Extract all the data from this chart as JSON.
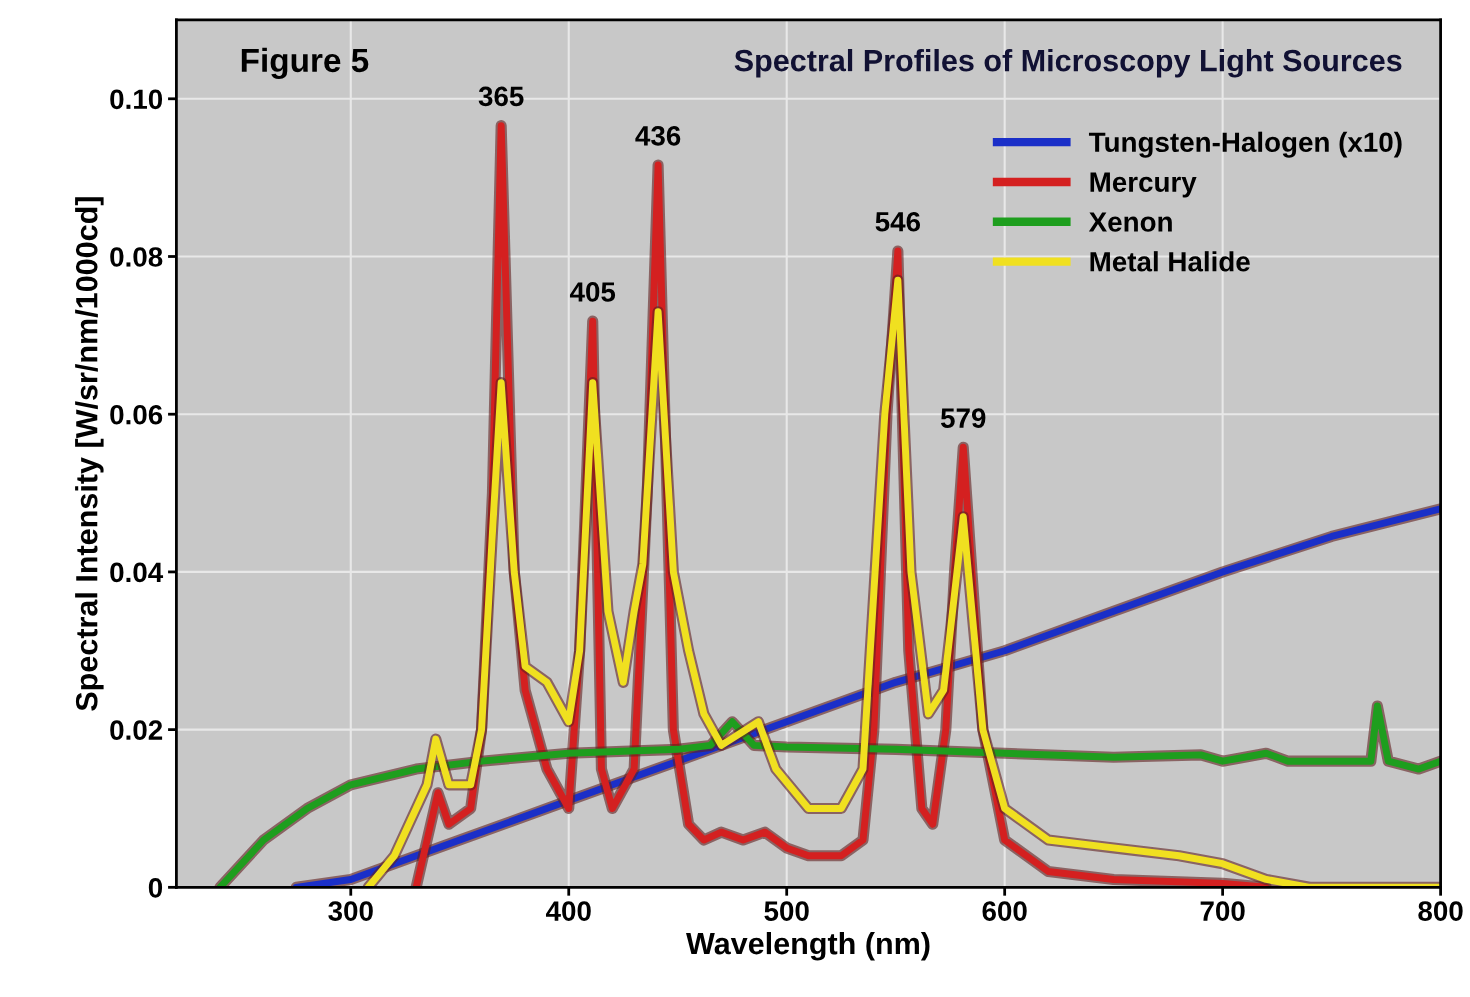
{
  "chart_data": {
    "type": "line",
    "title": "Spectral Profiles of Microscopy Light Sources",
    "xlabel": "Wavelength (nm)",
    "ylabel": "Spectral Intensity [W/sr/nm/1000cd]",
    "xlim": [
      220,
      800
    ],
    "ylim": [
      0,
      0.11
    ],
    "xticks": [
      300,
      400,
      500,
      600,
      700,
      800
    ],
    "yticks": [
      0,
      0.02,
      0.04,
      0.06,
      0.08,
      {
        "value": 0.1,
        "label": "0.10"
      }
    ],
    "grid": true,
    "legend": "top right",
    "line_style": "solid",
    "annotations": [
      "Figure 5",
      {
        "text": "365",
        "x": 369,
        "y": 0.0966
      },
      {
        "text": "405",
        "x": 411,
        "y": 0.0718
      },
      {
        "text": "436",
        "x": 441,
        "y": 0.0916
      },
      {
        "text": "546",
        "x": 551,
        "y": 0.0807
      },
      {
        "text": "579",
        "x": 581,
        "y": 0.0558
      }
    ],
    "series": [
      {
        "name": "Tungsten-Halogen (x10)",
        "color": "#1a2fc8",
        "x": [
          275,
          300,
          350,
          400,
          450,
          500,
          550,
          600,
          650,
          700,
          750,
          800
        ],
        "values": [
          0,
          0.001,
          0.006,
          0.011,
          0.016,
          0.021,
          0.026,
          0.03,
          0.035,
          0.04,
          0.0445,
          0.048
        ]
      },
      {
        "name": "Mercury",
        "color": "#d42020",
        "x": [
          330,
          335,
          340,
          345,
          355,
          360,
          365,
          369,
          375,
          380,
          390,
          400,
          405,
          411,
          415,
          420,
          430,
          436,
          441,
          448,
          455,
          462,
          470,
          480,
          490,
          500,
          510,
          525,
          535,
          540,
          546,
          551,
          556,
          562,
          567,
          573,
          577,
          581,
          590,
          600,
          620,
          650,
          700,
          720
        ],
        "values": [
          0,
          0.006,
          0.012,
          0.008,
          0.01,
          0.02,
          0.05,
          0.0966,
          0.04,
          0.025,
          0.015,
          0.01,
          0.03,
          0.0718,
          0.015,
          0.01,
          0.015,
          0.05,
          0.0916,
          0.02,
          0.008,
          0.006,
          0.007,
          0.006,
          0.007,
          0.005,
          0.004,
          0.004,
          0.006,
          0.02,
          0.06,
          0.0807,
          0.03,
          0.01,
          0.008,
          0.02,
          0.04,
          0.0558,
          0.02,
          0.006,
          0.002,
          0.001,
          0.0005,
          0
        ]
      },
      {
        "name": "Xenon",
        "color": "#1e9e1e",
        "x": [
          240,
          260,
          280,
          300,
          330,
          360,
          400,
          450,
          465,
          475,
          485,
          500,
          550,
          600,
          650,
          690,
          700,
          710,
          720,
          730,
          750,
          768,
          771,
          776,
          790,
          800
        ],
        "values": [
          0,
          0.006,
          0.01,
          0.013,
          0.015,
          0.016,
          0.017,
          0.0175,
          0.018,
          0.021,
          0.018,
          0.0178,
          0.0175,
          0.017,
          0.0165,
          0.0168,
          0.016,
          0.0165,
          0.017,
          0.016,
          0.016,
          0.016,
          0.023,
          0.016,
          0.015,
          0.016
        ]
      },
      {
        "name": "Metal Halide",
        "color": "#f0e020",
        "x": [
          308,
          320,
          330,
          335,
          339,
          345,
          355,
          360,
          365,
          369,
          375,
          380,
          390,
          400,
          405,
          411,
          418,
          425,
          430,
          434,
          441,
          448,
          455,
          462,
          470,
          487,
          495,
          510,
          525,
          535,
          545,
          551,
          557,
          565,
          572,
          581,
          590,
          600,
          620,
          650,
          680,
          700,
          720,
          740,
          800
        ],
        "values": [
          0,
          0.004,
          0.01,
          0.013,
          0.0188,
          0.013,
          0.013,
          0.02,
          0.045,
          0.064,
          0.04,
          0.028,
          0.026,
          0.021,
          0.03,
          0.064,
          0.035,
          0.026,
          0.035,
          0.041,
          0.073,
          0.04,
          0.03,
          0.022,
          0.018,
          0.021,
          0.015,
          0.01,
          0.01,
          0.015,
          0.06,
          0.077,
          0.04,
          0.022,
          0.025,
          0.047,
          0.02,
          0.01,
          0.006,
          0.005,
          0.004,
          0.003,
          0.001,
          0,
          0
        ]
      }
    ]
  }
}
